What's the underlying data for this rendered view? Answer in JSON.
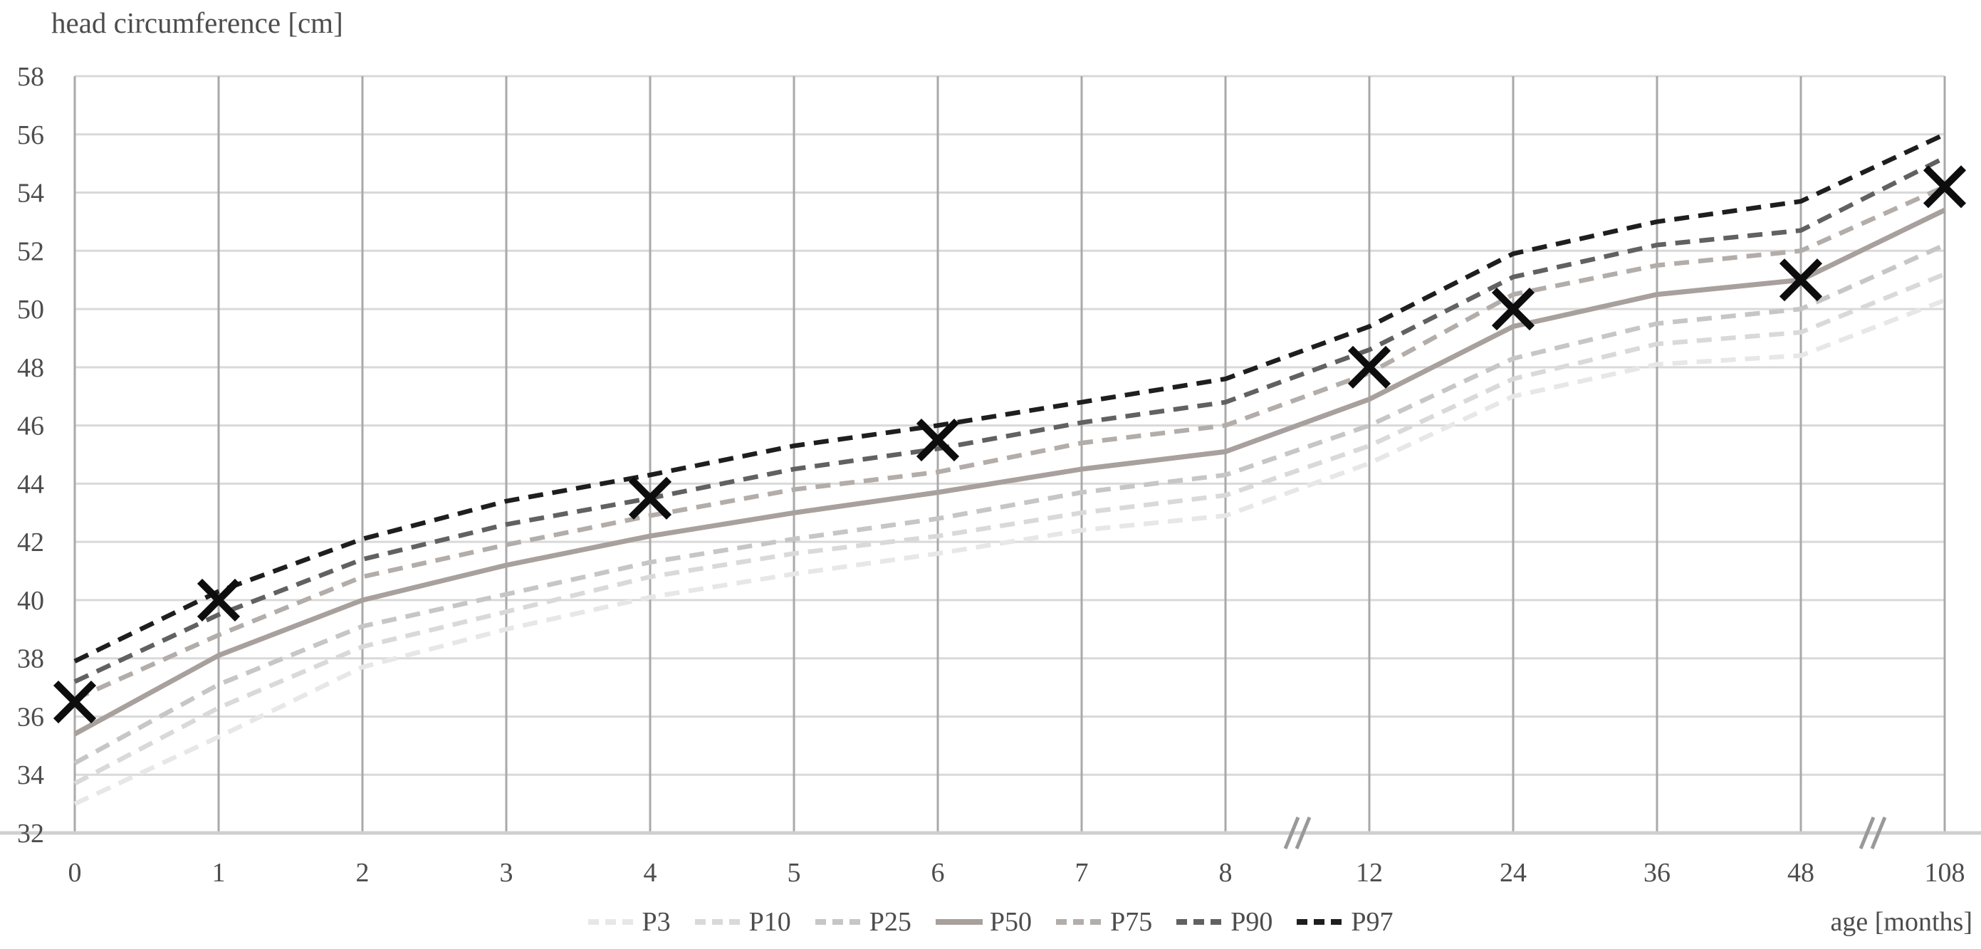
{
  "title": "head circumference [cm]",
  "x_axis_label": "age [months]",
  "chart_data": {
    "type": "line",
    "title": "head circumference [cm]",
    "xlabel": "age [months]",
    "ylabel": "head circumference [cm]",
    "categories": [
      "0",
      "1",
      "2",
      "3",
      "4",
      "5",
      "6",
      "7",
      "8",
      "12",
      "24",
      "36",
      "48",
      "108"
    ],
    "ylim": [
      32,
      58
    ],
    "ytick_step": 2,
    "grid": true,
    "legend_position": "bottom",
    "x_axis_break_after_categories": [
      "8",
      "48"
    ],
    "series": [
      {
        "name": "P3",
        "style": "dashed",
        "color": "#e7e7e7",
        "values": [
          33.0,
          35.3,
          37.7,
          39.0,
          40.1,
          40.9,
          41.6,
          42.4,
          42.9,
          44.7,
          47.0,
          48.1,
          48.4,
          50.3
        ]
      },
      {
        "name": "P10",
        "style": "dashed",
        "color": "#d9d9d9",
        "values": [
          33.7,
          36.3,
          38.4,
          39.6,
          40.8,
          41.6,
          42.2,
          43.0,
          43.6,
          45.3,
          47.6,
          48.8,
          49.2,
          51.2
        ]
      },
      {
        "name": "P25",
        "style": "dashed",
        "color": "#c6c6c6",
        "values": [
          34.4,
          37.1,
          39.1,
          40.2,
          41.3,
          42.1,
          42.8,
          43.7,
          44.3,
          46.0,
          48.3,
          49.5,
          50.0,
          52.2
        ]
      },
      {
        "name": "P50",
        "style": "solid",
        "color": "#a8a09d",
        "values": [
          35.4,
          38.1,
          40.0,
          41.2,
          42.2,
          43.0,
          43.7,
          44.5,
          45.1,
          46.9,
          49.4,
          50.5,
          51.0,
          53.4
        ]
      },
      {
        "name": "P75",
        "style": "dashed",
        "color": "#b3adaa",
        "values": [
          36.6,
          38.8,
          40.8,
          41.9,
          42.9,
          43.8,
          44.4,
          45.4,
          46.0,
          47.8,
          50.5,
          51.5,
          52.0,
          54.2
        ]
      },
      {
        "name": "P90",
        "style": "dashed",
        "color": "#616161",
        "values": [
          37.2,
          39.5,
          41.4,
          42.6,
          43.5,
          44.5,
          45.2,
          46.1,
          46.8,
          48.6,
          51.1,
          52.2,
          52.7,
          55.2
        ]
      },
      {
        "name": "P97",
        "style": "dashed",
        "color": "#1e1e1e",
        "values": [
          37.9,
          40.3,
          42.1,
          43.4,
          44.3,
          45.3,
          46.0,
          46.8,
          47.6,
          49.4,
          51.9,
          53.0,
          53.7,
          56.0
        ]
      }
    ],
    "markers": {
      "symbol": "x",
      "color": "#0d0d0d",
      "points": [
        {
          "age": "0",
          "value": 36.5
        },
        {
          "age": "1",
          "value": 40.0
        },
        {
          "age": "4",
          "value": 43.5
        },
        {
          "age": "6",
          "value": 45.5
        },
        {
          "age": "12",
          "value": 48.0
        },
        {
          "age": "24",
          "value": 50.0
        },
        {
          "age": "48",
          "value": 51.0
        },
        {
          "age": "108",
          "value": 54.2
        }
      ]
    },
    "theme": {
      "h_grid_color": "#d9d9d9",
      "v_grid_color": "#a9a9a9",
      "axis_color": "#cfcfcf",
      "break_mark_color": "#999999",
      "text_color": "#4d4d4d"
    }
  }
}
